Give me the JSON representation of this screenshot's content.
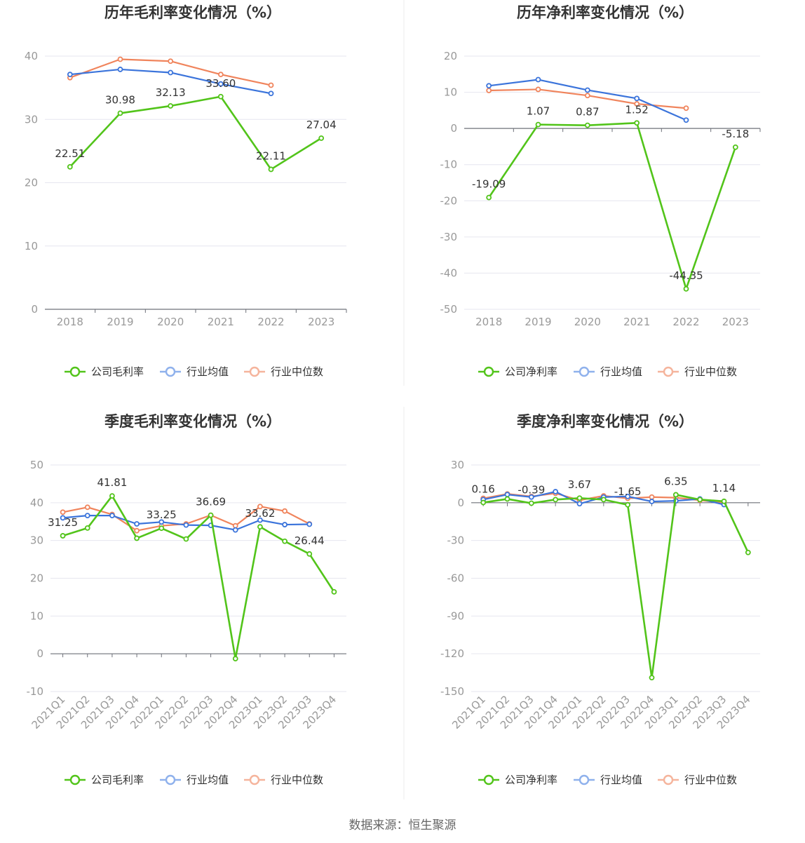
{
  "colors": {
    "company": "#52c41a",
    "avg": "#3b74db",
    "median": "#f0845c",
    "legend_avg": "#8fb1ec",
    "legend_median": "#f5b49c"
  },
  "source": "数据来源：恒生聚源",
  "chart_data": [
    {
      "type": "line",
      "title": "历年毛利率变化情况（%）",
      "categories": [
        "2018",
        "2019",
        "2020",
        "2021",
        "2022",
        "2023"
      ],
      "ylim": [
        0,
        40
      ],
      "yticks": [
        0,
        10,
        20,
        30,
        40
      ],
      "grid": true,
      "legend_position": "bottom",
      "series": [
        {
          "name": "公司毛利率",
          "role": "company",
          "values": [
            22.51,
            30.98,
            32.13,
            33.6,
            22.11,
            27.04
          ],
          "labels": [
            "22.51",
            "30.98",
            "32.13",
            "33.60",
            "22.11",
            "27.04"
          ]
        },
        {
          "name": "行业均值",
          "role": "avg",
          "values": [
            37.1,
            37.9,
            37.4,
            35.6,
            34.1,
            null
          ]
        },
        {
          "name": "行业中位数",
          "role": "median",
          "values": [
            36.6,
            39.5,
            39.2,
            37.1,
            35.4,
            null
          ]
        }
      ]
    },
    {
      "type": "line",
      "title": "历年净利率变化情况（%）",
      "categories": [
        "2018",
        "2019",
        "2020",
        "2021",
        "2022",
        "2023"
      ],
      "ylim": [
        -50,
        20
      ],
      "yticks": [
        -50,
        -40,
        -30,
        -20,
        -10,
        0,
        10,
        20
      ],
      "grid": true,
      "legend_position": "bottom",
      "series": [
        {
          "name": "公司净利率",
          "role": "company",
          "values": [
            -19.09,
            1.07,
            0.87,
            1.52,
            -44.35,
            -5.18
          ],
          "labels": [
            "-19.09",
            "1.07",
            "0.87",
            "1.52",
            "-44.35",
            "-5.18"
          ]
        },
        {
          "name": "行业均值",
          "role": "avg",
          "values": [
            11.8,
            13.5,
            10.6,
            8.3,
            2.3,
            null
          ]
        },
        {
          "name": "行业中位数",
          "role": "median",
          "values": [
            10.5,
            10.8,
            9.1,
            6.8,
            5.6,
            null
          ]
        }
      ]
    },
    {
      "type": "line",
      "title": "季度毛利率变化情况（%）",
      "categories": [
        "2021Q1",
        "2021Q2",
        "2021Q3",
        "2021Q4",
        "2022Q1",
        "2022Q2",
        "2022Q3",
        "2022Q4",
        "2023Q1",
        "2023Q2",
        "2023Q3",
        "2023Q4"
      ],
      "ylim": [
        -10,
        50
      ],
      "yticks": [
        -10,
        0,
        10,
        20,
        30,
        40,
        50
      ],
      "grid": true,
      "legend_position": "bottom",
      "series": [
        {
          "name": "公司毛利率",
          "role": "company",
          "values": [
            31.25,
            33.3,
            41.81,
            30.6,
            33.25,
            30.4,
            36.69,
            -1.3,
            33.62,
            29.8,
            26.44,
            16.4
          ],
          "labels": [
            "31.25",
            "",
            "41.81",
            "",
            "33.25",
            "",
            "36.69",
            "",
            "33.62",
            "",
            "26.44",
            ""
          ]
        },
        {
          "name": "行业均值",
          "role": "avg",
          "values": [
            36.0,
            36.6,
            36.6,
            34.4,
            34.9,
            34.1,
            34.0,
            32.8,
            35.4,
            34.2,
            34.3,
            null
          ]
        },
        {
          "name": "行业中位数",
          "role": "median",
          "values": [
            37.5,
            38.8,
            36.9,
            32.6,
            33.9,
            34.4,
            36.7,
            33.9,
            39.0,
            37.8,
            34.4,
            null
          ]
        }
      ]
    },
    {
      "type": "line",
      "title": "季度净利率变化情况（%）",
      "categories": [
        "2021Q1",
        "2021Q2",
        "2021Q3",
        "2021Q4",
        "2022Q1",
        "2022Q2",
        "2022Q3",
        "2022Q4",
        "2023Q1",
        "2023Q2",
        "2023Q3",
        "2023Q4"
      ],
      "ylim": [
        -150,
        30
      ],
      "yticks": [
        -150,
        -120,
        -90,
        -60,
        -30,
        0,
        30
      ],
      "grid": true,
      "legend_position": "bottom",
      "series": [
        {
          "name": "公司净利率",
          "role": "company",
          "values": [
            0.16,
            3.0,
            -0.39,
            2.5,
            3.67,
            2.5,
            -1.65,
            -139.0,
            6.35,
            2.5,
            1.14,
            -39.5
          ],
          "labels": [
            "0.16",
            "",
            "-0.39",
            "",
            "3.67",
            "",
            "-1.65",
            "",
            "6.35",
            "",
            "1.14",
            ""
          ]
        },
        {
          "name": "行业均值",
          "role": "avg",
          "values": [
            2.5,
            6.5,
            4.5,
            8.8,
            -0.8,
            4.5,
            5.0,
            1.0,
            1.5,
            3.0,
            -1.5,
            null
          ]
        },
        {
          "name": "行业中位数",
          "role": "median",
          "values": [
            3.5,
            7.0,
            5.0,
            7.5,
            2.0,
            5.5,
            3.5,
            4.5,
            4.0,
            2.0,
            0.0,
            null
          ]
        }
      ]
    }
  ]
}
